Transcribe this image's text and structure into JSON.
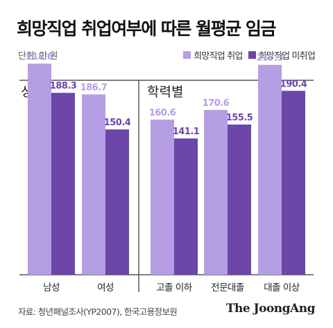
{
  "header": {
    "title": "희망직업 취업여부에 따른 월평균 임금",
    "unit": "단위: 만 원"
  },
  "legend": {
    "items": [
      {
        "label": "희망직업 취업",
        "color": "#b59ee3"
      },
      {
        "label": "희망직업 미취업",
        "color": "#6c46a8"
      }
    ]
  },
  "footer": {
    "source": "자료: 청년패널조사(YP2007), 한국고용정보원",
    "brand": "The JoongAng"
  },
  "chart_data": [
    {
      "type": "bar",
      "title": "성별",
      "categories": [
        "남성",
        "여성"
      ],
      "series": [
        {
          "name": "희망직업 취업",
          "values": [
            218.6,
            186.7
          ]
        },
        {
          "name": "희망직업 미취업",
          "values": [
            188.3,
            150.4
          ]
        }
      ],
      "ylim": [
        0,
        230
      ],
      "grid": false,
      "legend": "top-right"
    },
    {
      "type": "bar",
      "title": "학력별",
      "categories": [
        "고졸 이하",
        "전문대졸",
        "대졸 이상"
      ],
      "series": [
        {
          "name": "희망직업 취업",
          "values": [
            160.6,
            170.6,
            217.3
          ]
        },
        {
          "name": "희망직업 미취업",
          "values": [
            141.1,
            155.5,
            190.4
          ]
        }
      ],
      "ylim": [
        0,
        230
      ],
      "grid": false,
      "legend": "top-right"
    }
  ]
}
